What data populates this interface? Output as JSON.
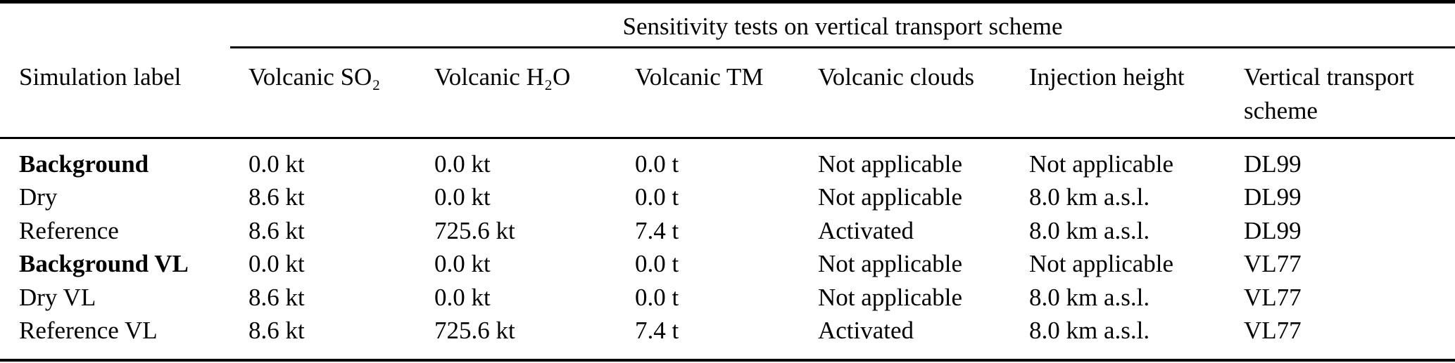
{
  "table": {
    "span_header": "Sensitivity tests on vertical transport scheme",
    "columns": [
      "Simulation label",
      "Volcanic SO₂",
      "Volcanic H₂O",
      "Volcanic TM",
      "Volcanic clouds",
      "Injection height",
      "Vertical transport scheme"
    ],
    "rows": [
      [
        "Background",
        "0.0 kt",
        "0.0 kt",
        "0.0 t",
        "Not applicable",
        "Not applicable",
        "DL99"
      ],
      [
        "Dry",
        "8.6 kt",
        "0.0 kt",
        "0.0 t",
        "Not applicable",
        "8.0 km a.s.l.",
        "DL99"
      ],
      [
        "Reference",
        "8.6 kt",
        "725.6 kt",
        "7.4 t",
        "Activated",
        "8.0 km a.s.l.",
        "DL99"
      ],
      [
        "Background VL",
        "0.0 kt",
        "0.0 kt",
        "0.0 t",
        "Not applicable",
        "Not applicable",
        "VL77"
      ],
      [
        "Dry VL",
        "8.6 kt",
        "0.0 kt",
        "0.0 t",
        "Not applicable",
        "8.0 km a.s.l.",
        "VL77"
      ],
      [
        "Reference VL",
        "8.6 kt",
        "725.6 kt",
        "7.4 t",
        "Activated",
        "8.0 km a.s.l.",
        "VL77"
      ]
    ],
    "text_color": "#000000",
    "background_color": "#ffffff"
  }
}
